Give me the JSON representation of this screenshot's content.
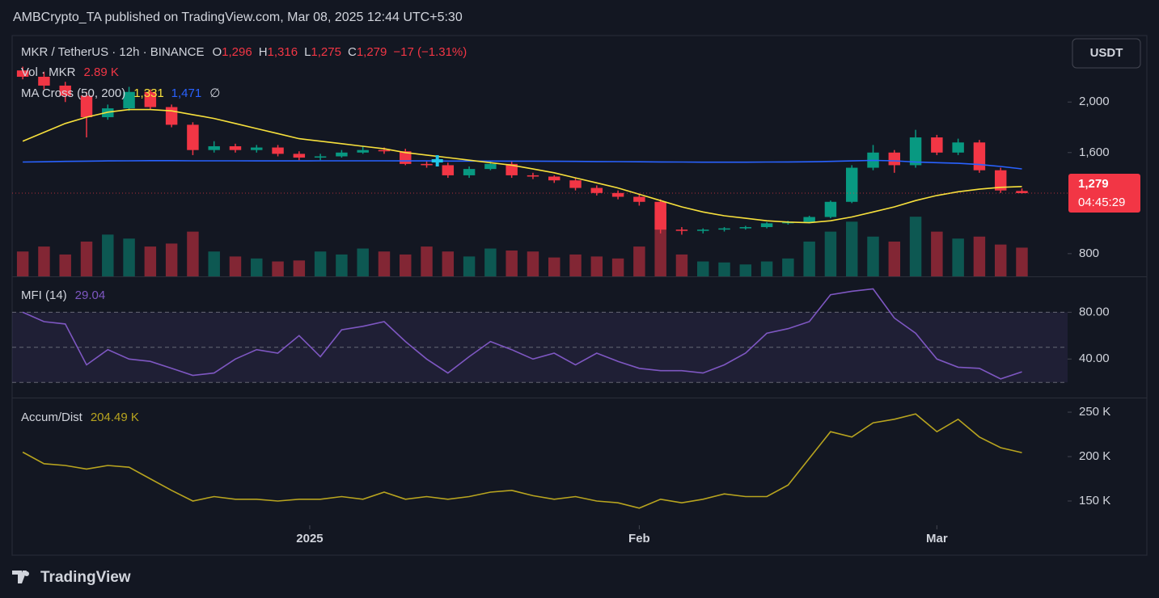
{
  "header": {
    "title": "AMBCrypto_TA published on TradingView.com, Mar 08, 2025 12:44 UTC+5:30",
    "currency": "USDT"
  },
  "footer": {
    "brand": "TradingView"
  },
  "chart_data": [
    {
      "type": "candlestick",
      "legend": {
        "symbol": "MKR / TetherUS · 12h · BINANCE",
        "items": [
          {
            "label": "O",
            "value": "1,296"
          },
          {
            "label": "H",
            "value": "1,316"
          },
          {
            "label": "L",
            "value": "1,275"
          },
          {
            "label": "C",
            "value": "1,279"
          }
        ],
        "change": "−17 (−1.31%)",
        "volume_title": "Vol · MKR",
        "volume_value": "2.89 K",
        "ma_title": "MA Cross (50, 200)",
        "ma_fast_value": "1,331",
        "ma_slow_value": "1,471",
        "ma_extra": "∅"
      },
      "x": [
        -27,
        -25,
        -23,
        -21,
        -19,
        -17,
        -15,
        -13,
        -11,
        -9,
        -7,
        -5,
        -3,
        -1,
        1,
        3,
        5,
        7,
        9,
        11,
        13,
        15,
        17,
        19,
        21,
        23,
        25,
        27,
        29,
        31,
        33,
        35,
        37,
        39,
        41,
        43,
        45,
        47,
        49,
        51,
        53,
        55,
        57,
        59,
        61,
        63,
        65,
        67
      ],
      "open": [
        2250,
        2200,
        2130,
        2050,
        1880,
        1950,
        2080,
        1960,
        1820,
        1620,
        1650,
        1620,
        1640,
        1590,
        1560,
        1570,
        1600,
        1620,
        1610,
        1510,
        1500,
        1420,
        1470,
        1510,
        1420,
        1410,
        1380,
        1320,
        1280,
        1250,
        1210,
        990,
        980,
        990,
        1000,
        1010,
        1040,
        1050,
        1090,
        1210,
        1480,
        1600,
        1500,
        1720,
        1600,
        1680,
        1460,
        1296
      ],
      "high": [
        2280,
        2240,
        2160,
        2080,
        1980,
        2120,
        2100,
        1980,
        1840,
        1690,
        1670,
        1660,
        1660,
        1610,
        1590,
        1620,
        1650,
        1640,
        1630,
        1530,
        1520,
        1490,
        1530,
        1530,
        1440,
        1420,
        1400,
        1340,
        1300,
        1270,
        1230,
        1010,
        1000,
        1010,
        1020,
        1050,
        1060,
        1100,
        1220,
        1500,
        1660,
        1620,
        1780,
        1740,
        1710,
        1700,
        1480,
        1316
      ],
      "low": [
        2180,
        2100,
        2000,
        1720,
        1860,
        1930,
        1940,
        1800,
        1580,
        1600,
        1600,
        1600,
        1570,
        1540,
        1540,
        1560,
        1590,
        1590,
        1500,
        1480,
        1400,
        1400,
        1460,
        1400,
        1390,
        1360,
        1300,
        1260,
        1230,
        1180,
        960,
        950,
        960,
        975,
        990,
        1000,
        1030,
        1040,
        1080,
        1200,
        1460,
        1440,
        1480,
        1580,
        1580,
        1440,
        1280,
        1275
      ],
      "close": [
        2200,
        2130,
        2050,
        1880,
        1950,
        2080,
        1960,
        1820,
        1620,
        1650,
        1620,
        1640,
        1590,
        1560,
        1570,
        1600,
        1620,
        1610,
        1510,
        1500,
        1420,
        1470,
        1510,
        1420,
        1410,
        1380,
        1320,
        1280,
        1250,
        1210,
        990,
        980,
        990,
        1000,
        1010,
        1040,
        1050,
        1090,
        1210,
        1480,
        1600,
        1500,
        1720,
        1600,
        1680,
        1460,
        1300,
        1279
      ],
      "volume": [
        2500,
        3000,
        2200,
        3500,
        4200,
        3800,
        3000,
        3300,
        4500,
        2500,
        2000,
        1800,
        1500,
        1600,
        2500,
        2200,
        2800,
        2500,
        2200,
        3000,
        2500,
        2000,
        2800,
        2600,
        2500,
        1900,
        2200,
        2000,
        1800,
        3000,
        6500,
        2200,
        1500,
        1400,
        1200,
        1500,
        1800,
        3500,
        4500,
        5500,
        4000,
        3500,
        6000,
        4500,
        3800,
        4000,
        3200,
        2890
      ],
      "ma_fast": {
        "color": "#f7e03c",
        "values": [
          1690,
          1760,
          1830,
          1880,
          1920,
          1940,
          1940,
          1930,
          1900,
          1870,
          1830,
          1790,
          1750,
          1710,
          1690,
          1670,
          1650,
          1630,
          1600,
          1580,
          1560,
          1540,
          1520,
          1500,
          1470,
          1440,
          1400,
          1360,
          1320,
          1270,
          1220,
          1170,
          1130,
          1100,
          1080,
          1060,
          1050,
          1045,
          1060,
          1090,
          1130,
          1170,
          1220,
          1260,
          1290,
          1310,
          1325,
          1331
        ]
      },
      "ma_slow": {
        "color": "#2962ff",
        "values": [
          1525,
          1527,
          1530,
          1532,
          1534,
          1535,
          1536,
          1536,
          1535,
          1535,
          1535,
          1534,
          1534,
          1534,
          1535,
          1535,
          1535,
          1535,
          1534,
          1534,
          1533,
          1533,
          1533,
          1532,
          1532,
          1531,
          1530,
          1529,
          1528,
          1527,
          1526,
          1525,
          1524,
          1524,
          1524,
          1525,
          1526,
          1527,
          1530,
          1534,
          1538,
          1535,
          1525,
          1520,
          1515,
          1505,
          1490,
          1471
        ]
      },
      "cross": {
        "x": 12,
        "value": 1535,
        "color": "#22c6e8"
      },
      "up_color": "#089981",
      "down_color": "#f23645",
      "last_price": {
        "value": 1279,
        "label": "1,279",
        "countdown": "04:45:29",
        "color": "#f23645"
      },
      "xlim": [
        -28,
        71.3
      ],
      "ylim": [
        620,
        2475
      ],
      "yticks": [
        800,
        {
          "value": 1600,
          "label": "1,600"
        },
        {
          "value": 2000,
          "label": "2,000"
        }
      ]
    },
    {
      "type": "line",
      "title": "MFI (14)",
      "value_label": "29.04",
      "color": "#7e57c2",
      "x": [
        -27,
        -25,
        -23,
        -21,
        -19,
        -17,
        -15,
        -13,
        -11,
        -9,
        -7,
        -5,
        -3,
        -1,
        1,
        3,
        5,
        7,
        9,
        11,
        13,
        15,
        17,
        19,
        21,
        23,
        25,
        27,
        29,
        31,
        33,
        35,
        37,
        39,
        41,
        43,
        45,
        47,
        49,
        51,
        53,
        55,
        57,
        59,
        61,
        63,
        65,
        67
      ],
      "values": [
        80,
        72,
        70,
        35,
        48,
        40,
        38,
        32,
        26,
        28,
        40,
        48,
        45,
        60,
        42,
        65,
        68,
        72,
        55,
        40,
        28,
        42,
        55,
        48,
        40,
        45,
        35,
        45,
        38,
        32,
        30,
        30,
        28,
        35,
        45,
        62,
        66,
        72,
        95,
        98,
        100,
        75,
        62,
        40,
        33,
        32,
        23,
        29.04
      ],
      "bands": {
        "upper": 80,
        "middle": 50,
        "lower": 20
      },
      "xlim": [
        -28,
        71.3
      ],
      "ylim": [
        7,
        110
      ],
      "yticks": [
        {
          "value": 40,
          "label": "40.00"
        },
        {
          "value": 80,
          "label": "80.00"
        }
      ]
    },
    {
      "type": "line",
      "title": "Accum/Dist",
      "value_label": "204.49 K",
      "color": "#b8a41f",
      "x": [
        -27,
        -25,
        -23,
        -21,
        -19,
        -17,
        -15,
        -13,
        -11,
        -9,
        -7,
        -5,
        -3,
        -1,
        1,
        3,
        5,
        7,
        9,
        11,
        13,
        15,
        17,
        19,
        21,
        23,
        25,
        27,
        29,
        31,
        33,
        35,
        37,
        39,
        41,
        43,
        45,
        47,
        49,
        51,
        53,
        55,
        57,
        59,
        61,
        63,
        65,
        67
      ],
      "values": [
        205,
        192,
        190,
        186,
        190,
        188,
        175,
        162,
        150,
        155,
        152,
        152,
        150,
        152,
        152,
        155,
        152,
        160,
        152,
        155,
        152,
        155,
        160,
        162,
        156,
        152,
        155,
        150,
        148,
        142,
        152,
        148,
        152,
        158,
        155,
        155,
        168,
        198,
        228,
        222,
        238,
        242,
        248,
        228,
        242,
        222,
        210,
        204.49
      ],
      "xlim": [
        -28,
        71.3
      ],
      "ylim": [
        122.7,
        265.5
      ],
      "yticks": [
        {
          "value": 150,
          "label": "150 K"
        },
        {
          "value": 200,
          "label": "200 K"
        },
        {
          "value": 250,
          "label": "250 K"
        }
      ],
      "xticks": [
        {
          "value": 0,
          "label": "2025"
        },
        {
          "value": 31,
          "label": "Feb"
        },
        {
          "value": 59,
          "label": "Mar"
        }
      ]
    }
  ]
}
